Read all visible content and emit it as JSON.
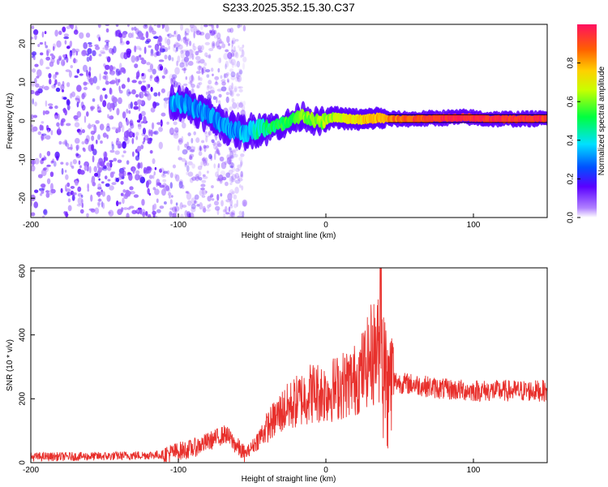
{
  "title": "S233.2025.352.15.30.C37",
  "colors": {
    "snr_line": "#e8302c",
    "scatter_purple": "#7a1ef0",
    "ridge_red": "#e8185a"
  },
  "chart_data": [
    {
      "type": "heatmap",
      "name": "spectrogram",
      "title": "S233.2025.352.15.30.C37",
      "xlabel": "Height of straight line (km)",
      "ylabel": "Frequency (Hz)",
      "xlim": [
        -200,
        150
      ],
      "ylim": [
        -25,
        25
      ],
      "xticks": [
        -200,
        -100,
        0,
        100
      ],
      "yticks": [
        -20,
        -10,
        0,
        10,
        20
      ],
      "colorbar": {
        "label": "Normalized spectral amplitude",
        "range": [
          0,
          1
        ],
        "ticks": [
          "0.0",
          "0.2",
          "0.4",
          "0.6",
          "0.8"
        ],
        "tick_values": [
          0,
          0.2,
          0.4,
          0.6,
          0.8
        ]
      },
      "ridge": {
        "description_points": [
          {
            "x": -105,
            "y": 5,
            "amp": 0.35
          },
          {
            "x": -95,
            "y": 4.5,
            "amp": 0.3
          },
          {
            "x": -85,
            "y": 2.5,
            "amp": 0.3
          },
          {
            "x": -75,
            "y": 0.5,
            "amp": 0.3
          },
          {
            "x": -65,
            "y": -2,
            "amp": 0.3
          },
          {
            "x": -55,
            "y": -3,
            "amp": 0.35
          },
          {
            "x": -45,
            "y": -2,
            "amp": 0.45
          },
          {
            "x": -35,
            "y": -1.5,
            "amp": 0.5
          },
          {
            "x": -25,
            "y": -0.5,
            "amp": 0.55
          },
          {
            "x": -15,
            "y": 1.5,
            "amp": 0.6
          },
          {
            "x": -5,
            "y": -0.5,
            "amp": 0.6
          },
          {
            "x": 5,
            "y": 1,
            "amp": 0.65
          },
          {
            "x": 15,
            "y": 0.5,
            "amp": 0.7
          },
          {
            "x": 25,
            "y": 0.3,
            "amp": 0.75
          },
          {
            "x": 35,
            "y": 0.8,
            "amp": 0.8
          },
          {
            "x": 45,
            "y": 0.5,
            "amp": 0.85
          },
          {
            "x": 60,
            "y": 0.5,
            "amp": 0.9
          },
          {
            "x": 80,
            "y": 0.8,
            "amp": 0.95
          },
          {
            "x": 95,
            "y": 1,
            "amp": 0.95
          },
          {
            "x": 110,
            "y": 0.5,
            "amp": 0.95
          },
          {
            "x": 125,
            "y": 0.5,
            "amp": 0.95
          },
          {
            "x": 150,
            "y": 0.6,
            "amp": 0.95
          }
        ]
      },
      "noise_region": {
        "x_from": -200,
        "x_to": -55,
        "amp": 0.15
      }
    },
    {
      "type": "line",
      "name": "snr",
      "xlabel": "Height of straight line (km)",
      "ylabel": "SNR (10 * v/v)",
      "xlim": [
        -200,
        150
      ],
      "ylim": [
        0,
        610
      ],
      "xticks": [
        -200,
        -100,
        0,
        100
      ],
      "yticks": [
        0,
        200,
        400,
        600
      ],
      "trend": {
        "x": [
          -200,
          -150,
          -110,
          -90,
          -75,
          -68,
          -62,
          -55,
          -48,
          -40,
          -30,
          -20,
          -10,
          0,
          10,
          20,
          25,
          30,
          35,
          38,
          40,
          45,
          50,
          60,
          80,
          100,
          120,
          150
        ],
        "y": [
          18,
          20,
          25,
          45,
          75,
          90,
          60,
          25,
          60,
          110,
          160,
          190,
          220,
          220,
          240,
          260,
          290,
          330,
          360,
          330,
          290,
          260,
          250,
          245,
          230,
          225,
          225,
          225
        ]
      },
      "peak": {
        "x": 37,
        "y": 610
      }
    }
  ]
}
